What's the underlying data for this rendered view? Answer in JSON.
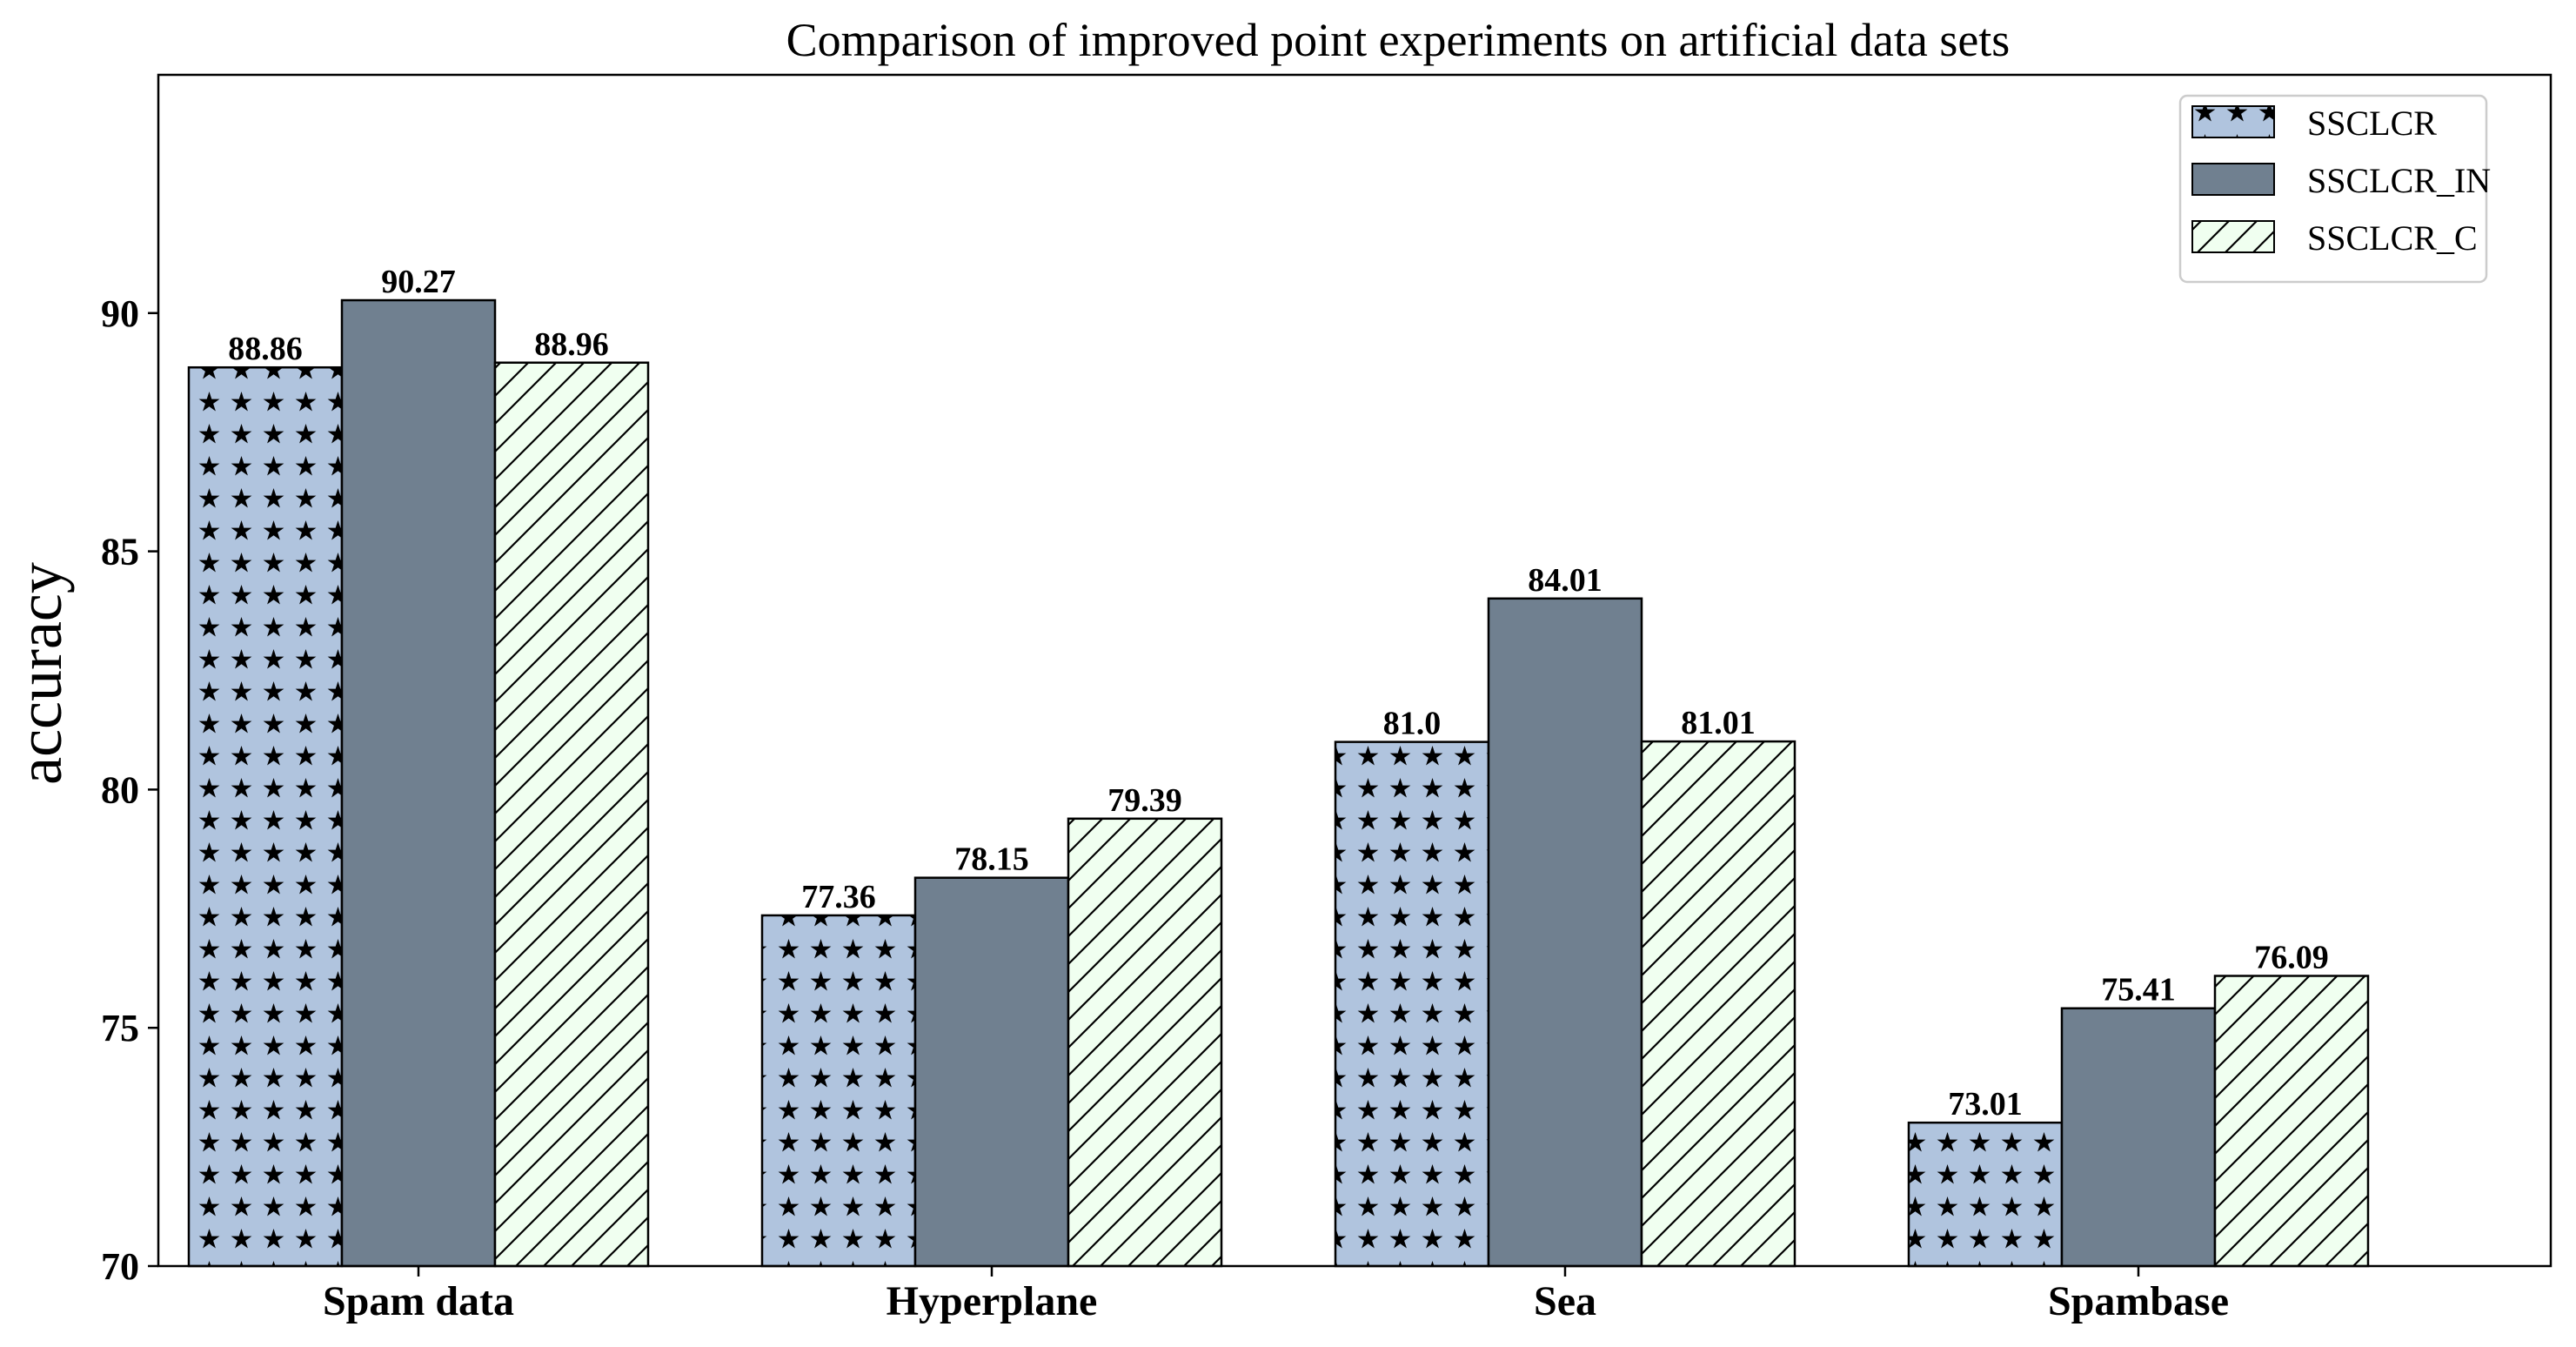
{
  "chart_data": {
    "type": "bar",
    "title": "Comparison of improved point experiments on artificial data sets",
    "xlabel": "",
    "ylabel": "accuracy",
    "ylim": [
      70,
      95
    ],
    "yticks": [
      70,
      75,
      80,
      85,
      90
    ],
    "grid": false,
    "legend_position": "top-right",
    "categories": [
      "Spam data",
      "Hyperplane",
      "Sea",
      "Spambase"
    ],
    "series": [
      {
        "name": "SSCLCR",
        "values": [
          88.86,
          77.36,
          81.0,
          73.01
        ],
        "labels": [
          "88.86",
          "77.36",
          "81.0",
          "73.01"
        ],
        "color": "#b0c4de",
        "hatch": "stars"
      },
      {
        "name": "SSCLCR_IN",
        "values": [
          90.27,
          78.15,
          84.01,
          75.41
        ],
        "labels": [
          "90.27",
          "78.15",
          "84.01",
          "75.41"
        ],
        "color": "#708090",
        "hatch": "none"
      },
      {
        "name": "SSCLCR_C",
        "values": [
          88.96,
          79.39,
          81.01,
          76.09
        ],
        "labels": [
          "88.96",
          "79.39",
          "81.01",
          "76.09"
        ],
        "color": "#f0fff0",
        "hatch": "diagonal"
      }
    ]
  }
}
